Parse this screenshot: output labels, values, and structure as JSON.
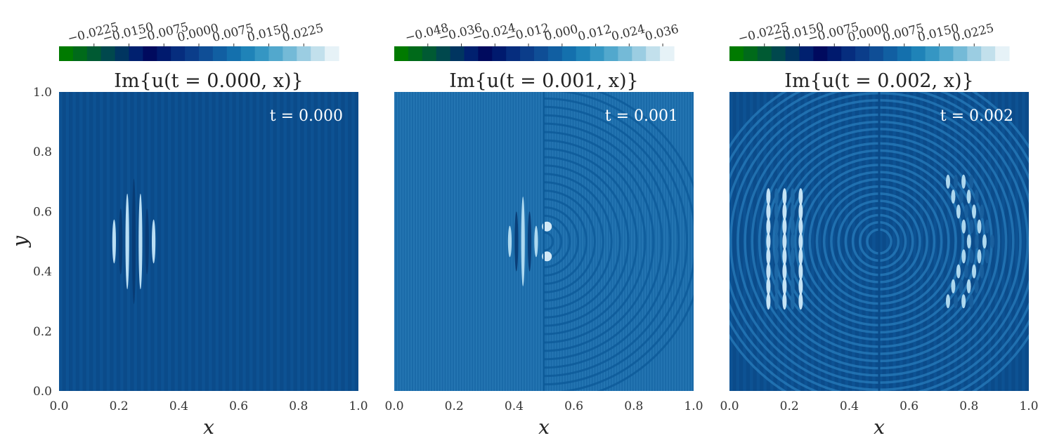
{
  "chart_data": [
    {
      "type": "heatmap",
      "title": "Im{u(t = 0.000, x)}",
      "annotation": "t = 0.000",
      "xlabel": "x",
      "ylabel": "y",
      "xlim": [
        0.0,
        1.0
      ],
      "ylim": [
        0.0,
        1.0
      ],
      "x_ticks": [
        "0.0",
        "0.2",
        "0.4",
        "0.6",
        "0.8",
        "1.0"
      ],
      "y_ticks": [
        "0.0",
        "0.2",
        "0.4",
        "0.6",
        "0.8",
        "1.0"
      ],
      "colorbar": {
        "colormap": "ocean",
        "range": [
          -0.03,
          0.03
        ],
        "ticks": [
          "−0.0225",
          "−0.0150",
          "−0.0075",
          "0.0000",
          "0.0075",
          "0.0150",
          "0.0225"
        ]
      },
      "background": "#0b4b8a",
      "features": "vertical stripes; bright wave packet centred near x=0.25, y=0.5"
    },
    {
      "type": "heatmap",
      "title": "Im{u(t = 0.001, x)}",
      "annotation": "t = 0.001",
      "xlabel": "x",
      "ylabel": "",
      "xlim": [
        0.0,
        1.0
      ],
      "ylim": [
        0.0,
        1.0
      ],
      "x_ticks": [
        "0.0",
        "0.2",
        "0.4",
        "0.6",
        "0.8",
        "1.0"
      ],
      "y_ticks": [],
      "colorbar": {
        "colormap": "ocean",
        "range": [
          -0.06,
          0.04
        ],
        "ticks": [
          "−0.048",
          "−0.036",
          "−0.024",
          "−0.012",
          "0.000",
          "0.012",
          "0.024",
          "0.036"
        ]
      },
      "background": "#1a6aa8",
      "features": "wave packet near x=0.45 hitting double slit at x=0.5, semicircular diffracted rings"
    },
    {
      "type": "heatmap",
      "title": "Im{u(t = 0.002, x)}",
      "annotation": "t = 0.002",
      "xlabel": "x",
      "ylabel": "",
      "xlim": [
        0.0,
        1.0
      ],
      "ylim": [
        0.0,
        1.0
      ],
      "x_ticks": [
        "0.0",
        "0.2",
        "0.4",
        "0.6",
        "0.8",
        "1.0"
      ],
      "y_ticks": [],
      "colorbar": {
        "colormap": "ocean",
        "range": [
          -0.03,
          0.03
        ],
        "ticks": [
          "−0.0225",
          "−0.0150",
          "−0.0075",
          "0.0000",
          "0.0075",
          "0.0150",
          "0.0225"
        ]
      },
      "background": "#0b4b8a",
      "features": "reflected packet near x=0.2, transmitted interference pattern near x=0.8, circular rings"
    }
  ]
}
